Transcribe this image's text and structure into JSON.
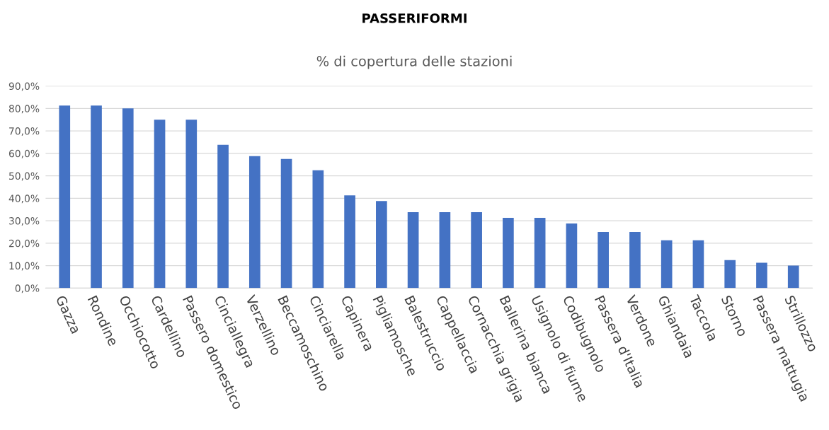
{
  "chart_data": {
    "type": "bar",
    "title": "PASSERIFORMI",
    "subtitle": "% di copertura delle stazioni",
    "categories": [
      "Gazza",
      "Rondine",
      "Occhiocotto",
      "Cardellino",
      "Passero domestico",
      "Cinciallegra",
      "Verzellino",
      "Beccamoschino",
      "Cinciarella",
      "Capinera",
      "Pigliamosche",
      "Balestruccio",
      "Cappellaccia",
      "Cornacchia grigia",
      "Ballerina bianca",
      "Usignolo di fiume",
      "Codibugnolo",
      "Passera d'Italia",
      "Verdone",
      "Ghiandaia",
      "Taccola",
      "Storno",
      "Passera mattugia",
      "Strillozzo"
    ],
    "values": [
      81.3,
      81.3,
      80.0,
      75.0,
      75.0,
      63.8,
      58.8,
      57.5,
      52.5,
      41.3,
      38.8,
      33.8,
      33.8,
      33.8,
      31.3,
      31.3,
      28.8,
      25.0,
      25.0,
      21.3,
      21.3,
      12.5,
      11.3,
      10.0
    ],
    "color": "#4472c4",
    "ylim": [
      0,
      90
    ],
    "yticks": [
      {
        "value": 0,
        "label": "0,0%"
      },
      {
        "value": 10,
        "label": "10,0%"
      },
      {
        "value": 20,
        "label": "20,0%"
      },
      {
        "value": 30,
        "label": "30,0%"
      },
      {
        "value": 40,
        "label": "40,0%"
      },
      {
        "value": 50,
        "label": "50,0%"
      },
      {
        "value": 60,
        "label": "60,0%"
      },
      {
        "value": 70,
        "label": "70,0%"
      },
      {
        "value": 80,
        "label": "80,0%"
      },
      {
        "value": 90,
        "label": "90,0%"
      }
    ],
    "grid": "y",
    "legend": false
  }
}
